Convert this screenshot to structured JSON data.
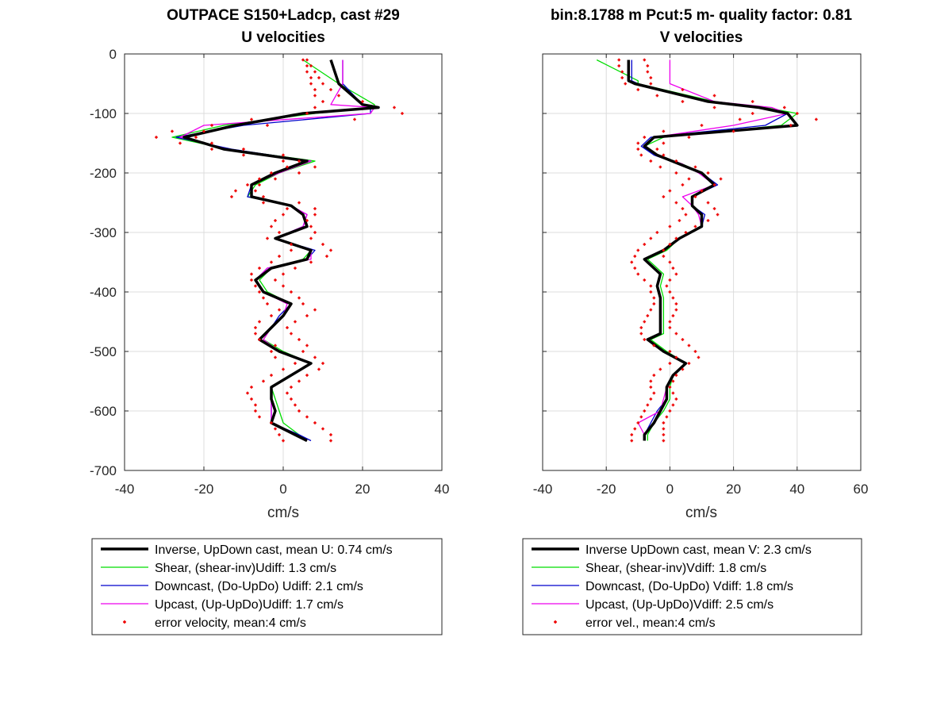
{
  "figure": {
    "left_title": "OUTPACE S150+Ladcp, cast #29",
    "right_title": "bin:8.1788 m  Pcut:5 m- quality factor:  0.81"
  },
  "chart_data": [
    {
      "type": "line",
      "title": "U velocities",
      "xlabel": "cm/s",
      "ylabel": "",
      "xlim": [
        -40,
        40
      ],
      "ylim": [
        -700,
        0
      ],
      "xticks": [
        -40,
        -20,
        0,
        20,
        40
      ],
      "yticks": [
        0,
        -100,
        -200,
        -300,
        -400,
        -500,
        -600,
        -700
      ],
      "grid": true,
      "legend_position": "below",
      "colors": {
        "inverse": "#000000",
        "shear": "#00dd00",
        "downcast": "#0000cc",
        "upcast": "#ee00ee",
        "error": "#ee0000"
      },
      "depth": [
        -10,
        -50,
        -85,
        -90,
        -100,
        -120,
        -140,
        -160,
        -180,
        -200,
        -220,
        -240,
        -255,
        -270,
        -290,
        -310,
        -330,
        -345,
        -360,
        -380,
        -400,
        -420,
        -440,
        -460,
        -480,
        -500,
        -520,
        -540,
        -560,
        -580,
        -600,
        -620,
        -640,
        -650
      ],
      "series": [
        {
          "name": "Inverse, UpDown cast, mean U:  0.74 cm/s",
          "key": "inverse",
          "values": [
            12,
            14,
            20,
            24,
            5,
            -12,
            -25,
            -15,
            6,
            -2,
            -8,
            -8,
            2,
            5,
            6,
            -2,
            7,
            6,
            -3,
            -7,
            -5,
            2,
            0,
            -3,
            -6,
            -1,
            7,
            2,
            -3,
            -3,
            -2,
            -3,
            3,
            6
          ]
        },
        {
          "name": "Shear, (shear-inv)Udiff:  1.3 cm/s",
          "key": "shear",
          "values": [
            5,
            14,
            23,
            23,
            8,
            -15,
            -28,
            -14,
            8,
            -1,
            -7,
            -9,
            2,
            5,
            6,
            -2,
            7,
            5,
            -3,
            -6,
            -4,
            2,
            0,
            -3,
            -5,
            0,
            7,
            2,
            -3,
            -2,
            -1,
            0,
            4,
            6
          ]
        },
        {
          "name": "Downcast, (Do-UpDo) Udiff:  2.1 cm/s",
          "key": "downcast",
          "values": [
            15,
            15,
            20,
            22,
            22,
            -10,
            -27,
            -13,
            7,
            -2,
            -8,
            -9,
            2,
            6,
            5,
            -2,
            8,
            6,
            -4,
            -7,
            -5,
            2,
            -1,
            -3,
            -6,
            -1,
            7,
            2,
            -3,
            -3,
            -3,
            -3,
            4,
            7
          ]
        },
        {
          "name": "Upcast, (Up-UpDo)Udiff:  1.7 cm/s",
          "key": "upcast",
          "values": [
            15,
            15,
            12,
            23,
            22,
            -20,
            -26,
            -14,
            7,
            -1,
            -8,
            -8,
            2,
            6,
            5,
            -2,
            7,
            7,
            -4,
            -7,
            -5,
            1,
            0,
            -3,
            -5,
            -1,
            7,
            2,
            -3,
            -3,
            -3,
            -3,
            3,
            6
          ]
        }
      ],
      "error_series": {
        "name": "error velocity, mean:4 cm/s",
        "key": "error",
        "depth": [
          -10,
          -20,
          -30,
          -40,
          -50,
          -60,
          -70,
          -80,
          -90,
          -100,
          -110,
          -120,
          -130,
          -140,
          -150,
          -160,
          -170,
          -180,
          -190,
          -200,
          -210,
          -220,
          -230,
          -240,
          -250,
          -260,
          -270,
          -280,
          -290,
          -300,
          -310,
          -320,
          -330,
          -340,
          -350,
          -360,
          -370,
          -380,
          -390,
          -400,
          -410,
          -420,
          -430,
          -440,
          -450,
          -460,
          -470,
          -480,
          -490,
          -500,
          -510,
          -520,
          -530,
          -540,
          -550,
          -560,
          -570,
          -580,
          -590,
          -600,
          -610,
          -620,
          -630,
          -640,
          -650
        ],
        "left": [
          5,
          6,
          6,
          7,
          7,
          8,
          8,
          10,
          8,
          6,
          -8,
          -18,
          -28,
          -32,
          -26,
          -18,
          -10,
          0,
          1,
          -3,
          -6,
          -9,
          -12,
          -13,
          -5,
          1,
          0,
          -2,
          -3,
          -1,
          -4,
          2,
          2,
          -1,
          -3,
          -6,
          -8,
          -8,
          -7,
          -6,
          -5,
          -4,
          -1,
          -3,
          -6,
          -7,
          -7,
          -6,
          -2,
          -3,
          -2,
          3,
          0,
          -3,
          -5,
          -8,
          -9,
          -8,
          -7,
          -7,
          -6,
          -3,
          -2,
          -1,
          0
        ],
        "right": [
          6,
          7,
          8,
          9,
          10,
          12,
          14,
          20,
          28,
          30,
          18,
          -4,
          -20,
          -22,
          -18,
          -10,
          0,
          4,
          8,
          4,
          -2,
          -6,
          -7,
          -5,
          4,
          8,
          8,
          6,
          7,
          8,
          7,
          10,
          12,
          11,
          7,
          3,
          0,
          -2,
          0,
          2,
          4,
          5,
          8,
          6,
          3,
          1,
          2,
          4,
          6,
          5,
          8,
          10,
          9,
          6,
          4,
          2,
          1,
          2,
          3,
          4,
          6,
          8,
          10,
          12,
          12
        ]
      }
    },
    {
      "type": "line",
      "title": "V velocities",
      "xlabel": "cm/s",
      "ylabel": "",
      "xlim": [
        -40,
        60
      ],
      "ylim": [
        -700,
        0
      ],
      "xticks": [
        -40,
        -20,
        0,
        20,
        40,
        60
      ],
      "yticks": [
        0,
        -100,
        -200,
        -300,
        -400,
        -500,
        -600,
        -700
      ],
      "grid": true,
      "legend_position": "below",
      "colors": {
        "inverse": "#000000",
        "shear": "#00dd00",
        "downcast": "#0000cc",
        "upcast": "#ee00ee",
        "error": "#ee0000"
      },
      "depth": [
        -10,
        -45,
        -50,
        -80,
        -90,
        -100,
        -120,
        -140,
        -155,
        -170,
        -185,
        -200,
        -220,
        -240,
        -255,
        -270,
        -290,
        -310,
        -330,
        -345,
        -370,
        -390,
        -410,
        -430,
        -450,
        -470,
        -480,
        -500,
        -520,
        -540,
        -560,
        -580,
        -600,
        -620,
        -640,
        -650
      ],
      "series": [
        {
          "name": "Inverse UpDown cast, mean V:  2.3 cm/s",
          "key": "inverse",
          "values": [
            -13,
            -13,
            -11,
            12,
            28,
            37,
            40,
            -5,
            -8,
            -4,
            3,
            10,
            14,
            7,
            7,
            10,
            10,
            3,
            -2,
            -8,
            -3,
            -4,
            -3,
            -3,
            -3,
            -3,
            -7,
            -2,
            5,
            1,
            -1,
            -1,
            -3,
            -5,
            -8,
            -8
          ]
        },
        {
          "name": "Shear, (shear-inv)Vdiff:  1.8 cm/s",
          "key": "shear",
          "values": [
            -23,
            -10,
            -10,
            14,
            30,
            40,
            35,
            -2,
            -8,
            -4,
            4,
            10,
            14,
            7,
            7,
            10,
            10,
            3,
            -1,
            -7,
            -2,
            -3,
            -2,
            -2,
            -2,
            -2,
            -6,
            -1,
            5,
            1,
            0,
            0,
            -2,
            -5,
            -7,
            -7
          ]
        },
        {
          "name": "Downcast, (Do-UpDo) Vdiff:  1.8 cm/s",
          "key": "downcast",
          "values": [
            -12,
            -12,
            -10,
            12,
            28,
            37,
            30,
            -6,
            -9,
            -5,
            3,
            10,
            15,
            7,
            7,
            11,
            10,
            3,
            -2,
            -8,
            -3,
            -4,
            -3,
            -3,
            -3,
            -3,
            -7,
            -2,
            5,
            1,
            -1,
            -1,
            -4,
            -6,
            -8,
            -8
          ]
        },
        {
          "name": "Upcast, (Up-UpDo)Vdiff:  2.5 cm/s",
          "key": "upcast",
          "values": [
            0,
            0,
            0,
            14,
            32,
            37,
            20,
            -5,
            -8,
            -4,
            4,
            9,
            14,
            4,
            7,
            9,
            10,
            3,
            -2,
            -8,
            -3,
            -4,
            -3,
            -3,
            -3,
            -3,
            -7,
            -2,
            5,
            1,
            -1,
            -2,
            -3,
            -10,
            -8,
            -8
          ]
        }
      ],
      "error_series": {
        "name": "error vel., mean:4 cm/s",
        "key": "error",
        "depth": [
          -10,
          -20,
          -30,
          -40,
          -50,
          -60,
          -70,
          -80,
          -90,
          -100,
          -110,
          -120,
          -130,
          -140,
          -150,
          -160,
          -170,
          -180,
          -190,
          -200,
          -210,
          -220,
          -230,
          -240,
          -250,
          -260,
          -270,
          -280,
          -290,
          -300,
          -310,
          -320,
          -330,
          -340,
          -350,
          -360,
          -370,
          -380,
          -390,
          -400,
          -410,
          -420,
          -430,
          -440,
          -450,
          -460,
          -470,
          -480,
          -490,
          -500,
          -510,
          -520,
          -530,
          -540,
          -550,
          -560,
          -570,
          -580,
          -590,
          -600,
          -610,
          -620,
          -630,
          -640,
          -650
        ],
        "left": [
          -16,
          -16,
          -15,
          -15,
          -14,
          -10,
          -4,
          4,
          14,
          26,
          22,
          10,
          -2,
          -8,
          -10,
          -10,
          -9,
          -6,
          -3,
          2,
          6,
          4,
          0,
          -2,
          2,
          4,
          5,
          3,
          0,
          -4,
          -6,
          -8,
          -10,
          -11,
          -12,
          -11,
          -10,
          -8,
          -6,
          -6,
          -5,
          -5,
          -6,
          -7,
          -8,
          -9,
          -9,
          -8,
          -5,
          0,
          2,
          0,
          -3,
          -5,
          -6,
          -6,
          -5,
          -6,
          -7,
          -8,
          -9,
          -10,
          -11,
          -12,
          -12
        ],
        "right": [
          -8,
          -7,
          -7,
          -6,
          -6,
          4,
          14,
          26,
          36,
          40,
          46,
          38,
          20,
          6,
          -2,
          -4,
          -2,
          2,
          8,
          12,
          16,
          14,
          10,
          8,
          12,
          14,
          15,
          12,
          8,
          5,
          2,
          0,
          -2,
          -2,
          0,
          1,
          2,
          0,
          -1,
          0,
          1,
          2,
          2,
          1,
          0,
          0,
          2,
          4,
          6,
          8,
          9,
          6,
          4,
          2,
          1,
          0,
          1,
          2,
          1,
          0,
          -1,
          -2,
          -2,
          -2,
          -2
        ]
      }
    }
  ]
}
